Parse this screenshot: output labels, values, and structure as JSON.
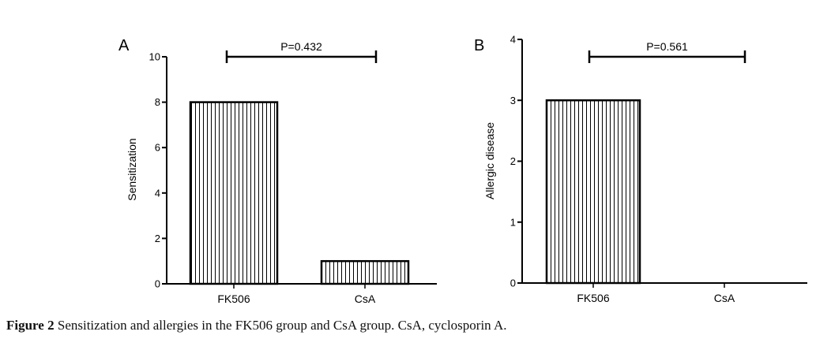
{
  "chart_data": [
    {
      "type": "bar",
      "panel": "A",
      "categories": [
        "FK506",
        "CsA"
      ],
      "values": [
        8,
        1
      ],
      "xlabel": "",
      "ylabel": "Sensitization",
      "ylim": [
        0,
        10
      ],
      "yticks": [
        0,
        2,
        4,
        6,
        8,
        10
      ],
      "annotation": "P=0.432",
      "bar_fill": "vertical-hatch",
      "grid": false
    },
    {
      "type": "bar",
      "panel": "B",
      "categories": [
        "FK506",
        "CsA"
      ],
      "values": [
        3,
        0
      ],
      "xlabel": "",
      "ylabel": "Allergic disease",
      "ylim": [
        0,
        4
      ],
      "yticks": [
        0,
        1,
        2,
        3,
        4
      ],
      "annotation": "P=0.561",
      "bar_fill": "vertical-hatch",
      "grid": false
    }
  ],
  "caption": {
    "label": "Figure 2",
    "text": "Sensitization and allergies in the FK506 group and CsA group. CsA, cyclosporin A."
  },
  "colors": {
    "ink": "#000000",
    "background": "#ffffff"
  }
}
